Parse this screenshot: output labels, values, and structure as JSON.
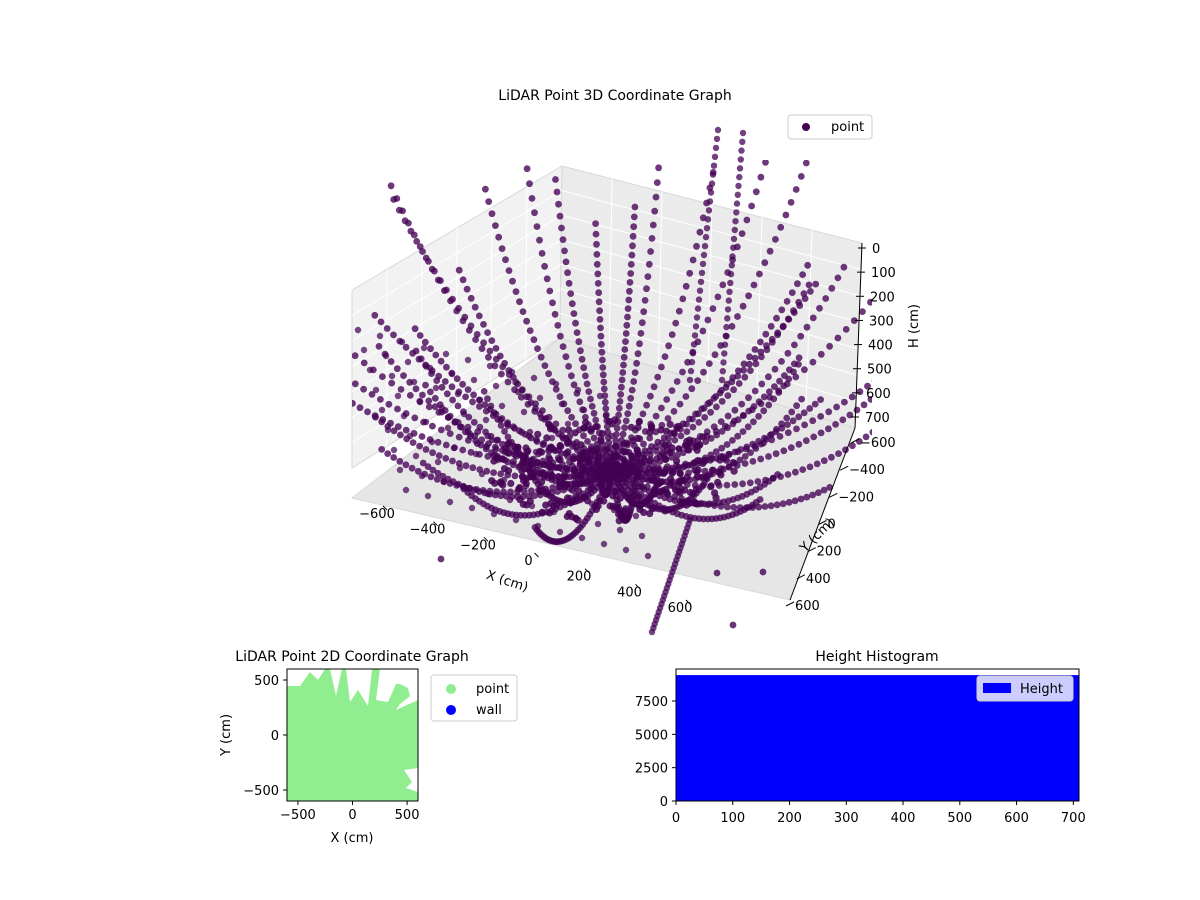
{
  "chart_data": [
    {
      "type": "scatter",
      "projection": "3d",
      "title": "LiDAR Point 3D Coordinate Graph",
      "xlabel": "X (cm)",
      "ylabel": "Y (cm)",
      "zlabel": "H (cm)",
      "xticks": [
        "−600",
        "−400",
        "−200",
        "0",
        "200",
        "400",
        "600"
      ],
      "yticks": [
        "−600",
        "−400",
        "−200",
        "0",
        "200",
        "400",
        "600"
      ],
      "zticks": [
        "0",
        "100",
        "200",
        "300",
        "400",
        "500",
        "600",
        "700"
      ],
      "xlim": [
        -600,
        600
      ],
      "ylim": [
        -600,
        600
      ],
      "zlim": [
        700,
        0
      ],
      "grid": true,
      "legend": "top-right",
      "series": [
        {
          "name": "point",
          "color": "#440154"
        }
      ]
    },
    {
      "type": "scatter",
      "title": "LiDAR Point 2D Coordinate Graph",
      "xlabel": "X (cm)",
      "ylabel": "Y (cm)",
      "xticks": [
        -500,
        0,
        500
      ],
      "yticks": [
        -500,
        0,
        500
      ],
      "xlim": [
        -600,
        600
      ],
      "ylim": [
        -600,
        600
      ],
      "legend": "outside-right",
      "series": [
        {
          "name": "point",
          "color": "#90ee90"
        },
        {
          "name": "wall",
          "color": "#0000ff"
        }
      ]
    },
    {
      "type": "bar",
      "title": "Height Histogram",
      "xticks": [
        0,
        100,
        200,
        300,
        400,
        500,
        600,
        700
      ],
      "yticks": [
        0,
        2500,
        5000,
        7500
      ],
      "xlim": [
        0,
        710
      ],
      "ylim": [
        0,
        9900
      ],
      "bins_value": 9440,
      "legend": "top-right",
      "series": [
        {
          "name": "Height",
          "color": "#0000ff"
        }
      ]
    }
  ]
}
